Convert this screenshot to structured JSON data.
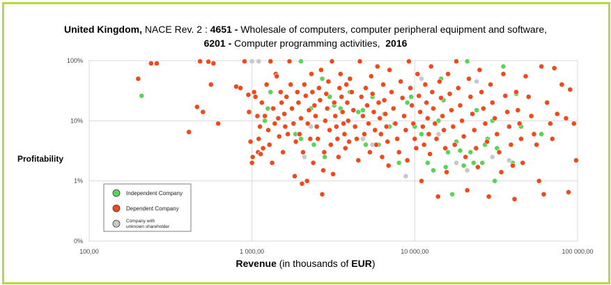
{
  "chart_data": {
    "type": "scatter",
    "title": {
      "country": "United Kingdom,",
      "nace_label": " NACE Rev. 2 : ",
      "code1": "4651 -",
      "code1_desc": " Wholesale of computers, computer peripheral equipment and software,",
      "code2": "6201 -",
      "code2_desc": " Computer programming activities,",
      "year": "2016"
    },
    "xlabel": {
      "bold": "Revenue",
      "rest": " (in thousands of ",
      "unit": "EUR",
      "close": ")"
    },
    "ylabel": "Profitability",
    "x_scale": "log",
    "y_scale": "log",
    "xlim": [
      100,
      100000
    ],
    "ylim": [
      0.1,
      100
    ],
    "x_ticks": [
      {
        "value": 100,
        "label": "100,00"
      },
      {
        "value": 1000,
        "label": "1 000,00"
      },
      {
        "value": 10000,
        "label": "10 000,00"
      },
      {
        "value": 100000,
        "label": "100 000,00"
      }
    ],
    "y_ticks": [
      {
        "value": 100,
        "label": "100%"
      },
      {
        "value": 10,
        "label": "10%"
      },
      {
        "value": 1,
        "label": "1%"
      },
      {
        "value": 0.1,
        "label": "0%"
      }
    ],
    "legend": {
      "position": "bottom-left",
      "entries": [
        {
          "label": "Independent Company",
          "color": "#5bd35b"
        },
        {
          "label": "Dependent Company",
          "color": "#f04a1c"
        },
        {
          "label": "Company with unknown shareholder",
          "color": "#c8c8c8"
        }
      ]
    },
    "colors": {
      "independent": "#5bd35b",
      "dependent": "#f04a1c",
      "unknown": "#c8c8c8"
    },
    "series": [
      {
        "name": "Independent Company",
        "points": [
          [
            210,
            26
          ],
          [
            1200,
            10
          ],
          [
            1250,
            16
          ],
          [
            1300,
            30
          ],
          [
            1600,
            8
          ],
          [
            1850,
            6
          ],
          [
            2000,
            100
          ],
          [
            2000,
            5
          ],
          [
            2300,
            16
          ],
          [
            2400,
            4
          ],
          [
            2700,
            50
          ],
          [
            2800,
            2.5
          ],
          [
            3000,
            25
          ],
          [
            3200,
            18
          ],
          [
            3500,
            16
          ],
          [
            4000,
            30
          ],
          [
            4500,
            14
          ],
          [
            4800,
            15
          ],
          [
            5000,
            4
          ],
          [
            5500,
            25
          ],
          [
            6000,
            4
          ],
          [
            6500,
            13
          ],
          [
            7000,
            8
          ],
          [
            7500,
            9
          ],
          [
            8000,
            2
          ],
          [
            9000,
            20
          ],
          [
            9500,
            25
          ],
          [
            10000,
            8
          ],
          [
            11000,
            6
          ],
          [
            12000,
            2
          ],
          [
            13000,
            1.5
          ],
          [
            14000,
            10
          ],
          [
            14500,
            50
          ],
          [
            15000,
            22
          ],
          [
            15500,
            1.7
          ],
          [
            16000,
            3
          ],
          [
            17000,
            0.6
          ],
          [
            18000,
            4.5
          ],
          [
            19000,
            3.2
          ],
          [
            20000,
            1.8
          ],
          [
            21000,
            100
          ],
          [
            22000,
            3
          ],
          [
            23000,
            2
          ],
          [
            24000,
            15
          ],
          [
            26000,
            2
          ],
          [
            27000,
            4
          ],
          [
            28000,
            5
          ],
          [
            30000,
            10
          ],
          [
            31000,
            1
          ],
          [
            32000,
            3.5
          ],
          [
            35000,
            80
          ],
          [
            40000,
            2
          ],
          [
            42000,
            28
          ],
          [
            45000,
            8
          ],
          [
            60000,
            6
          ]
        ]
      },
      {
        "name": "Company with unknown shareholder",
        "points": [
          [
            1000,
            100
          ],
          [
            1100,
            100
          ],
          [
            2100,
            2.5
          ],
          [
            2300,
            8
          ],
          [
            4800,
            5
          ],
          [
            5500,
            4
          ],
          [
            8800,
            1.2
          ],
          [
            11000,
            50
          ],
          [
            12000,
            6
          ],
          [
            14000,
            6
          ],
          [
            18000,
            2
          ],
          [
            21000,
            1.5
          ],
          [
            24000,
            45
          ],
          [
            30000,
            2.5
          ],
          [
            38000,
            2.2
          ]
        ]
      },
      {
        "name": "Dependent Company",
        "points": [
          [
            200,
            50
          ],
          [
            240,
            90
          ],
          [
            260,
            90
          ],
          [
            410,
            6.5
          ],
          [
            460,
            17
          ],
          [
            480,
            98
          ],
          [
            500,
            14
          ],
          [
            540,
            96
          ],
          [
            560,
            40
          ],
          [
            580,
            90
          ],
          [
            620,
            9
          ],
          [
            800,
            37
          ],
          [
            850,
            35
          ],
          [
            900,
            100
          ],
          [
            950,
            27
          ],
          [
            960,
            14
          ],
          [
            980,
            4.5
          ],
          [
            1000,
            2
          ],
          [
            1010,
            2.5
          ],
          [
            1030,
            30
          ],
          [
            1050,
            25
          ],
          [
            1080,
            12
          ],
          [
            1090,
            3
          ],
          [
            1100,
            5
          ],
          [
            1120,
            8
          ],
          [
            1130,
            2.8
          ],
          [
            1150,
            20
          ],
          [
            1170,
            3.5
          ],
          [
            1200,
            12
          ],
          [
            1230,
            40
          ],
          [
            1260,
            7
          ],
          [
            1280,
            4
          ],
          [
            1300,
            100
          ],
          [
            1330,
            2
          ],
          [
            1350,
            16
          ],
          [
            1380,
            9
          ],
          [
            1400,
            60
          ],
          [
            1420,
            55
          ],
          [
            1450,
            11
          ],
          [
            1470,
            5.5
          ],
          [
            1500,
            30
          ],
          [
            1520,
            20
          ],
          [
            1550,
            3
          ],
          [
            1580,
            13
          ],
          [
            1600,
            8
          ],
          [
            1630,
            25
          ],
          [
            1660,
            6
          ],
          [
            1700,
            100
          ],
          [
            1730,
            40
          ],
          [
            1760,
            16
          ],
          [
            1800,
            9
          ],
          [
            1830,
            1.2
          ],
          [
            1860,
            4.5
          ],
          [
            1900,
            30
          ],
          [
            1930,
            20
          ],
          [
            1960,
            6
          ],
          [
            2000,
            11
          ],
          [
            2030,
            0.9
          ],
          [
            2060,
            3
          ],
          [
            2100,
            40
          ],
          [
            2140,
            26
          ],
          [
            2180,
            1
          ],
          [
            2200,
            9
          ],
          [
            2240,
            15
          ],
          [
            2280,
            5
          ],
          [
            2320,
            60
          ],
          [
            2350,
            30
          ],
          [
            2380,
            2
          ],
          [
            2420,
            18
          ],
          [
            2460,
            12
          ],
          [
            2500,
            8
          ],
          [
            2540,
            5
          ],
          [
            2580,
            35
          ],
          [
            2620,
            22
          ],
          [
            2660,
            70
          ],
          [
            2700,
            0.6
          ],
          [
            2740,
            1.5
          ],
          [
            2780,
            3
          ],
          [
            2820,
            10
          ],
          [
            2860,
            28
          ],
          [
            2900,
            16
          ],
          [
            2950,
            45
          ],
          [
            3000,
            7
          ],
          [
            3050,
            4
          ],
          [
            3100,
            100
          ],
          [
            3150,
            1.3
          ],
          [
            3200,
            20
          ],
          [
            3250,
            12
          ],
          [
            3300,
            8
          ],
          [
            3350,
            5
          ],
          [
            3400,
            2.5
          ],
          [
            3450,
            35
          ],
          [
            3500,
            60
          ],
          [
            3550,
            25
          ],
          [
            3600,
            14
          ],
          [
            3650,
            9
          ],
          [
            3700,
            6
          ],
          [
            3750,
            3.5
          ],
          [
            3800,
            40
          ],
          [
            3850,
            20
          ],
          [
            3900,
            10
          ],
          [
            3950,
            4.5
          ],
          [
            4000,
            50
          ],
          [
            4100,
            30
          ],
          [
            4200,
            15
          ],
          [
            4300,
            8
          ],
          [
            4400,
            5
          ],
          [
            4500,
            2.2
          ],
          [
            4600,
            100
          ],
          [
            4700,
            25
          ],
          [
            4800,
            12
          ],
          [
            4900,
            6
          ],
          [
            5000,
            35
          ],
          [
            5100,
            18
          ],
          [
            5200,
            9
          ],
          [
            5300,
            3
          ],
          [
            5400,
            55
          ],
          [
            5500,
            28
          ],
          [
            5600,
            14
          ],
          [
            5700,
            7
          ],
          [
            5800,
            4
          ],
          [
            5900,
            80
          ],
          [
            6000,
            20
          ],
          [
            6100,
            11
          ],
          [
            6200,
            6
          ],
          [
            6300,
            2.5
          ],
          [
            6400,
            40
          ],
          [
            6500,
            22
          ],
          [
            6600,
            13
          ],
          [
            6700,
            8
          ],
          [
            6800,
            4.5
          ],
          [
            6900,
            1.8
          ],
          [
            7000,
            70
          ],
          [
            7200,
            30
          ],
          [
            7400,
            16
          ],
          [
            7600,
            9
          ],
          [
            7800,
            5
          ],
          [
            8000,
            3
          ],
          [
            8200,
            45
          ],
          [
            8400,
            24
          ],
          [
            8600,
            12
          ],
          [
            8800,
            7
          ],
          [
            9000,
            2.2
          ],
          [
            9200,
            100
          ],
          [
            9400,
            35
          ],
          [
            9600,
            18
          ],
          [
            9800,
            9
          ],
          [
            10000,
            5
          ],
          [
            10200,
            3.5
          ],
          [
            10400,
            60
          ],
          [
            10600,
            26
          ],
          [
            10800,
            14
          ],
          [
            11000,
            1
          ],
          [
            11200,
            8
          ],
          [
            11400,
            4
          ],
          [
            11600,
            40
          ],
          [
            11800,
            20
          ],
          [
            12000,
            11
          ],
          [
            12200,
            6
          ],
          [
            12400,
            2.8
          ],
          [
            12600,
            80
          ],
          [
            12800,
            30
          ],
          [
            13000,
            16
          ],
          [
            13300,
            9
          ],
          [
            13600,
            5
          ],
          [
            13900,
            0.55
          ],
          [
            14200,
            45
          ],
          [
            14500,
            24
          ],
          [
            14800,
            12
          ],
          [
            15100,
            7
          ],
          [
            15400,
            3.5
          ],
          [
            15700,
            1.4
          ],
          [
            16000,
            60
          ],
          [
            16400,
            28
          ],
          [
            16800,
            15
          ],
          [
            17200,
            8
          ],
          [
            17600,
            4
          ],
          [
            18000,
            100
          ],
          [
            18500,
            35
          ],
          [
            19000,
            18
          ],
          [
            19500,
            10
          ],
          [
            20000,
            5.5
          ],
          [
            20500,
            2.5
          ],
          [
            21000,
            0.7
          ],
          [
            21500,
            50
          ],
          [
            22000,
            25
          ],
          [
            22600,
            13
          ],
          [
            23200,
            7
          ],
          [
            23800,
            3.5
          ],
          [
            24400,
            1.7
          ],
          [
            25000,
            70
          ],
          [
            25700,
            30
          ],
          [
            26400,
            16
          ],
          [
            27100,
            9
          ],
          [
            27800,
            4.5
          ],
          [
            28500,
            0.55
          ],
          [
            29200,
            40
          ],
          [
            30000,
            20
          ],
          [
            31000,
            11
          ],
          [
            32000,
            6
          ],
          [
            33000,
            3
          ],
          [
            34000,
            1.4
          ],
          [
            35000,
            60
          ],
          [
            36000,
            26
          ],
          [
            37000,
            14
          ],
          [
            38000,
            8
          ],
          [
            39000,
            4
          ],
          [
            40000,
            1.8
          ],
          [
            41000,
            0.5
          ],
          [
            42000,
            30
          ],
          [
            43000,
            15
          ],
          [
            44000,
            9
          ],
          [
            45000,
            5
          ],
          [
            46000,
            2
          ],
          [
            48000,
            55
          ],
          [
            50000,
            25
          ],
          [
            52000,
            12
          ],
          [
            54000,
            6
          ],
          [
            56000,
            4
          ],
          [
            58000,
            1
          ],
          [
            60000,
            80
          ],
          [
            62000,
            0.6
          ],
          [
            65000,
            20
          ],
          [
            68000,
            9
          ],
          [
            70000,
            5
          ],
          [
            72000,
            75
          ],
          [
            75000,
            13
          ],
          [
            80000,
            40
          ],
          [
            85000,
            11
          ],
          [
            88000,
            0.65
          ],
          [
            90000,
            33
          ],
          [
            95000,
            9
          ],
          [
            98000,
            2.2
          ]
        ]
      }
    ]
  }
}
